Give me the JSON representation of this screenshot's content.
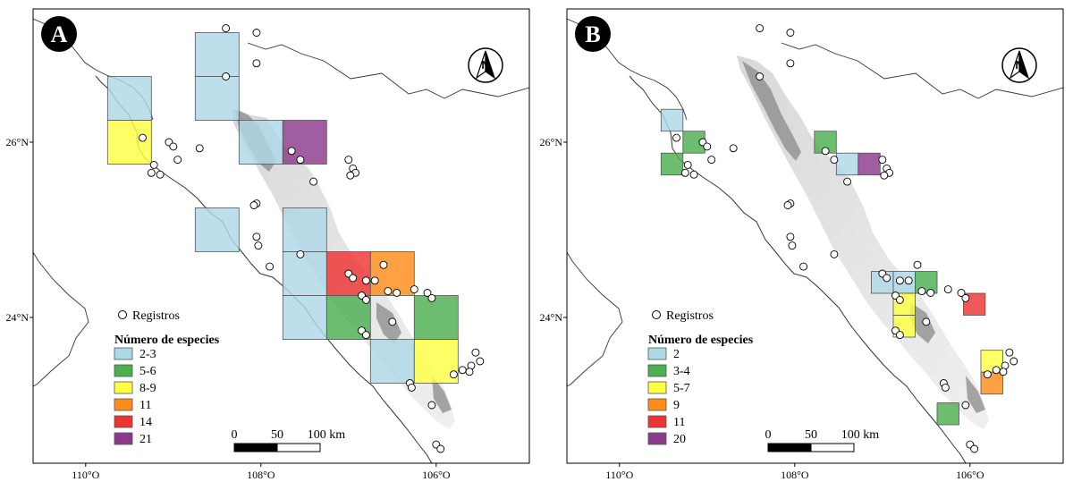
{
  "colors": {
    "c1": "#add8e6",
    "c2": "#4caf50",
    "c3": "#ffff44",
    "c4": "#ff8c1a",
    "c5": "#ee3333",
    "c6": "#8b3a8b"
  },
  "panels": [
    {
      "letter": "A",
      "records_label": "Registros",
      "legend_title": "Número de especies",
      "legend": [
        {
          "label": "2-3",
          "color": "c1"
        },
        {
          "label": "5-6",
          "color": "c2"
        },
        {
          "label": "8-9",
          "color": "c3"
        },
        {
          "label": "11",
          "color": "c4"
        },
        {
          "label": "14",
          "color": "c5"
        },
        {
          "label": "21",
          "color": "c6"
        }
      ],
      "scale": {
        "t0": "0",
        "t1": "50",
        "t2": "100 km"
      },
      "lat_ticks": [
        {
          "label": "26°N",
          "v": 26
        },
        {
          "label": "24°N",
          "v": 24
        }
      ],
      "lon_ticks": [
        {
          "label": "110°O",
          "v": -110
        },
        {
          "label": "108°O",
          "v": -108
        },
        {
          "label": "106°O",
          "v": -106
        }
      ],
      "cells": [
        {
          "lon": -109.5,
          "lat": 26.5,
          "color": "c1"
        },
        {
          "lon": -109.5,
          "lat": 26.0,
          "color": "c3"
        },
        {
          "lon": -108.5,
          "lat": 27.0,
          "color": "c1"
        },
        {
          "lon": -108.5,
          "lat": 26.5,
          "color": "c1"
        },
        {
          "lon": -108.0,
          "lat": 26.0,
          "color": "c1"
        },
        {
          "lon": -107.5,
          "lat": 26.0,
          "color": "c6"
        },
        {
          "lon": -108.5,
          "lat": 25.0,
          "color": "c1"
        },
        {
          "lon": -107.5,
          "lat": 25.0,
          "color": "c1"
        },
        {
          "lon": -107.5,
          "lat": 24.5,
          "color": "c1"
        },
        {
          "lon": -107.0,
          "lat": 24.5,
          "color": "c5"
        },
        {
          "lon": -106.5,
          "lat": 24.5,
          "color": "c4"
        },
        {
          "lon": -107.5,
          "lat": 24.0,
          "color": "c1"
        },
        {
          "lon": -107.0,
          "lat": 24.0,
          "color": "c2"
        },
        {
          "lon": -106.0,
          "lat": 24.0,
          "color": "c2"
        },
        {
          "lon": -106.5,
          "lat": 23.5,
          "color": "c1"
        },
        {
          "lon": -106.0,
          "lat": 23.5,
          "color": "c3"
        }
      ]
    },
    {
      "letter": "B",
      "records_label": "Registros",
      "legend_title": "Número de especies",
      "legend": [
        {
          "label": "2",
          "color": "c1"
        },
        {
          "label": "3-4",
          "color": "c2"
        },
        {
          "label": "5-7",
          "color": "c3"
        },
        {
          "label": "9",
          "color": "c4"
        },
        {
          "label": "11",
          "color": "c5"
        },
        {
          "label": "20",
          "color": "c6"
        }
      ],
      "scale": {
        "t0": "0",
        "t1": "50",
        "t2": "100 km"
      },
      "lat_ticks": [
        {
          "label": "26°N",
          "v": 26
        },
        {
          "label": "24°N",
          "v": 24
        }
      ],
      "lon_ticks": [
        {
          "label": "110°O",
          "v": -110
        },
        {
          "label": "108°O",
          "v": -108
        },
        {
          "label": "106°O",
          "v": -106
        }
      ],
      "cells": [
        {
          "lon": -109.4,
          "lat": 26.25,
          "color": "c1"
        },
        {
          "lon": -109.4,
          "lat": 25.75,
          "color": "c2"
        },
        {
          "lon": -109.15,
          "lat": 26.0,
          "color": "c2"
        },
        {
          "lon": -107.65,
          "lat": 26.0,
          "color": "c2"
        },
        {
          "lon": -107.4,
          "lat": 25.75,
          "color": "c1"
        },
        {
          "lon": -107.15,
          "lat": 25.75,
          "color": "c6"
        },
        {
          "lon": -107.0,
          "lat": 24.4,
          "color": "c1"
        },
        {
          "lon": -106.75,
          "lat": 24.4,
          "color": "c1"
        },
        {
          "lon": -106.5,
          "lat": 24.4,
          "color": "c2"
        },
        {
          "lon": -106.75,
          "lat": 24.15,
          "color": "c3"
        },
        {
          "lon": -106.75,
          "lat": 23.9,
          "color": "c3"
        },
        {
          "lon": -105.95,
          "lat": 24.15,
          "color": "c5"
        },
        {
          "lon": -105.75,
          "lat": 23.5,
          "color": "c3"
        },
        {
          "lon": -105.75,
          "lat": 23.25,
          "color": "c4"
        },
        {
          "lon": -106.25,
          "lat": 22.9,
          "color": "c2"
        }
      ]
    }
  ],
  "records": [
    [
      -108.4,
      27.3
    ],
    [
      -108.05,
      27.25
    ],
    [
      -108.05,
      26.9
    ],
    [
      -108.4,
      26.75
    ],
    [
      -109.35,
      26.05
    ],
    [
      -109.05,
      26.0
    ],
    [
      -109.0,
      25.95
    ],
    [
      -108.7,
      25.93
    ],
    [
      -108.95,
      25.8
    ],
    [
      -109.22,
      25.74
    ],
    [
      -109.25,
      25.65
    ],
    [
      -109.15,
      25.63
    ],
    [
      -107.55,
      25.8
    ],
    [
      -107.0,
      25.8
    ],
    [
      -106.95,
      25.7
    ],
    [
      -106.92,
      25.65
    ],
    [
      -106.98,
      25.62
    ],
    [
      -107.4,
      25.55
    ],
    [
      -108.05,
      25.3
    ],
    [
      -108.08,
      25.28
    ],
    [
      -108.05,
      24.92
    ],
    [
      -108.03,
      24.82
    ],
    [
      -107.55,
      24.72
    ],
    [
      -107.9,
      24.58
    ],
    [
      -107.0,
      24.5
    ],
    [
      -106.95,
      24.45
    ],
    [
      -106.8,
      24.42
    ],
    [
      -106.7,
      24.42
    ],
    [
      -106.55,
      24.3
    ],
    [
      -106.45,
      24.28
    ],
    [
      -106.85,
      24.25
    ],
    [
      -106.8,
      24.2
    ],
    [
      -106.25,
      24.32
    ],
    [
      -106.1,
      24.28
    ],
    [
      -106.05,
      24.22
    ],
    [
      -106.85,
      23.85
    ],
    [
      -106.8,
      23.8
    ],
    [
      -106.5,
      23.95
    ],
    [
      -105.55,
      23.6
    ],
    [
      -105.5,
      23.5
    ],
    [
      -105.6,
      23.45
    ],
    [
      -105.62,
      23.38
    ],
    [
      -105.8,
      23.35
    ],
    [
      -105.7,
      23.4
    ],
    [
      -106.3,
      23.25
    ],
    [
      -106.28,
      23.2
    ],
    [
      -106.05,
      23.0
    ],
    [
      -106.0,
      22.55
    ],
    [
      -105.95,
      22.5
    ],
    [
      -107.65,
      25.9
    ],
    [
      -106.6,
      24.6
    ]
  ]
}
